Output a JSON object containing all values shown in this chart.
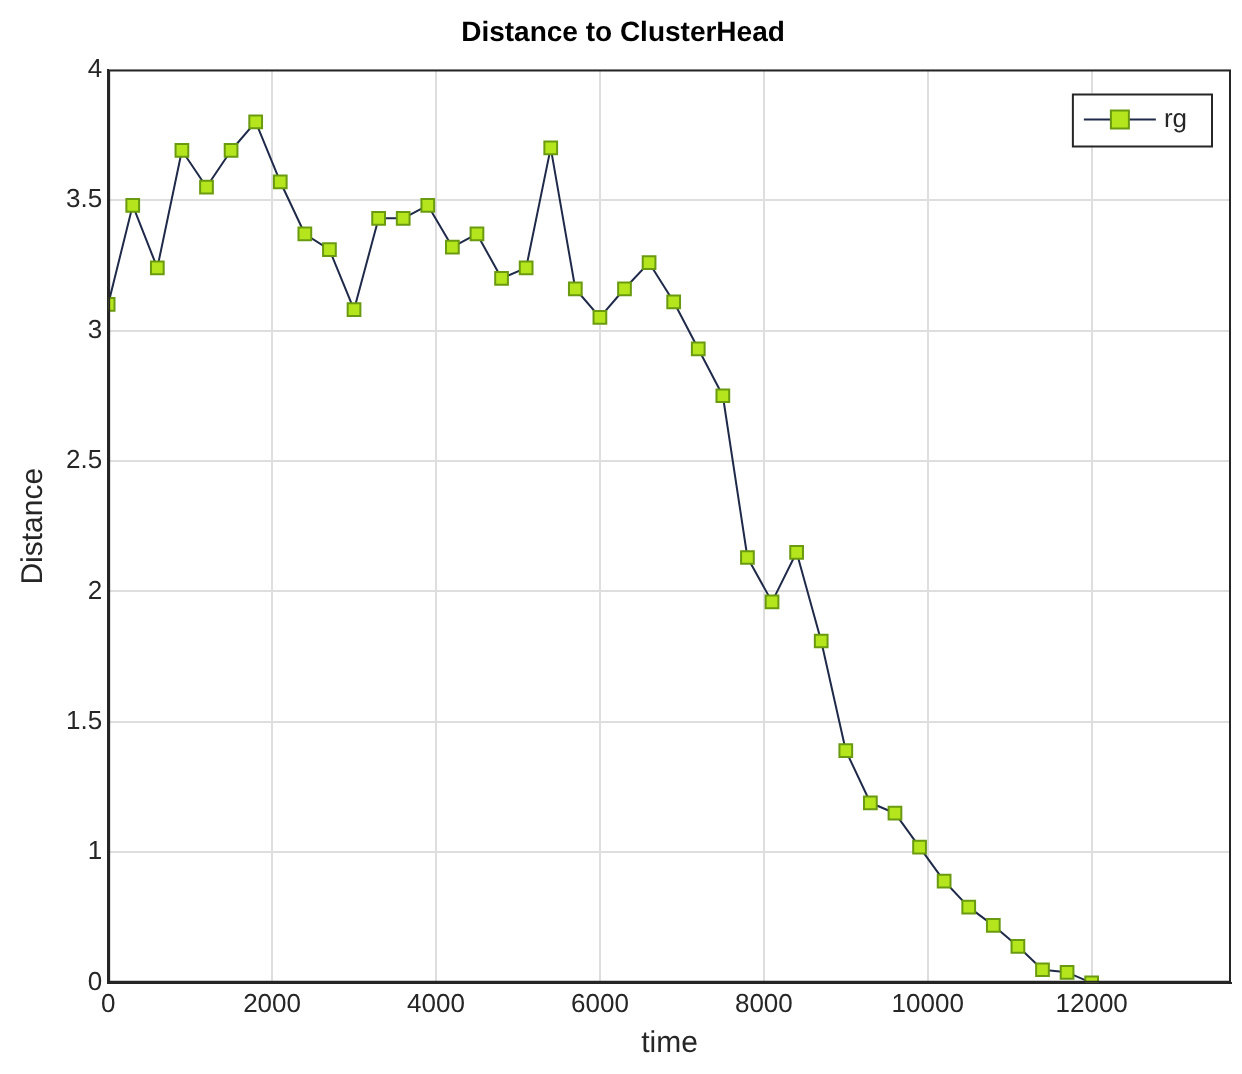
{
  "chart_data": {
    "type": "line",
    "title": "Distance to ClusterHead",
    "xlabel": "time",
    "ylabel": "Distance",
    "x": [
      0,
      300,
      600,
      900,
      1200,
      1500,
      1800,
      2100,
      2400,
      2700,
      3000,
      3300,
      3600,
      3900,
      4200,
      4500,
      4800,
      5100,
      5400,
      5700,
      6000,
      6300,
      6600,
      6900,
      7200,
      7500,
      7800,
      8100,
      8400,
      8700,
      9000,
      9300,
      9600,
      9900,
      10200,
      10500,
      10800,
      11100,
      11400,
      11700,
      12000
    ],
    "series": [
      {
        "name": "rg",
        "color": "#b5e61d",
        "values": [
          3.1,
          3.48,
          3.24,
          3.69,
          3.55,
          3.69,
          3.8,
          3.57,
          3.37,
          3.31,
          3.08,
          3.43,
          3.43,
          3.48,
          3.32,
          3.37,
          3.2,
          3.24,
          3.7,
          3.16,
          3.05,
          3.16,
          3.26,
          3.11,
          2.93,
          2.75,
          2.13,
          1.96,
          2.15,
          1.81,
          1.39,
          1.19,
          1.15,
          1.02,
          0.89,
          0.79,
          0.72,
          0.64,
          0.55,
          0.54,
          0.5
        ]
      }
    ],
    "xlim": [
      0,
      13700
    ],
    "xticks": [
      0,
      2000,
      4000,
      6000,
      8000,
      10000,
      12000
    ],
    "ylim": [
      0.5,
      4
    ],
    "yticks": [
      {
        "value": 0.5,
        "label": "0"
      },
      1,
      1.5,
      2,
      2.5,
      3,
      3.5,
      4
    ],
    "grid": true,
    "legend": "top right",
    "marker": "square",
    "line_style": "solid"
  }
}
